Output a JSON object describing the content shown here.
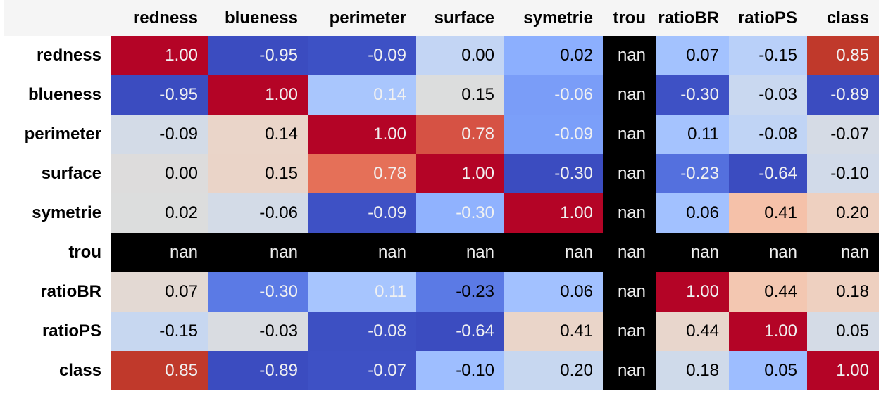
{
  "chart_data": {
    "type": "heatmap",
    "colormap": "coolwarm",
    "vmin": -1,
    "vmax": 1,
    "nan_color": "#000000",
    "columns": [
      "redness",
      "blueness",
      "perimeter",
      "surface",
      "symetrie",
      "trou",
      "ratioBR",
      "ratioPS",
      "class"
    ],
    "rows": [
      "redness",
      "blueness",
      "perimeter",
      "surface",
      "symetrie",
      "trou",
      "ratioBR",
      "ratioPS",
      "class"
    ],
    "values": [
      [
        "1.00",
        "-0.95",
        "-0.09",
        "0.00",
        "0.02",
        "nan",
        "0.07",
        "-0.15",
        "0.85"
      ],
      [
        "-0.95",
        "1.00",
        "0.14",
        "0.15",
        "-0.06",
        "nan",
        "-0.30",
        "-0.03",
        "-0.89"
      ],
      [
        "-0.09",
        "0.14",
        "1.00",
        "0.78",
        "-0.09",
        "nan",
        "0.11",
        "-0.08",
        "-0.07"
      ],
      [
        "0.00",
        "0.15",
        "0.78",
        "1.00",
        "-0.30",
        "nan",
        "-0.23",
        "-0.64",
        "-0.10"
      ],
      [
        "0.02",
        "-0.06",
        "-0.09",
        "-0.30",
        "1.00",
        "nan",
        "0.06",
        "0.41",
        "0.20"
      ],
      [
        "nan",
        "nan",
        "nan",
        "nan",
        "nan",
        "nan",
        "nan",
        "nan",
        "nan"
      ],
      [
        "0.07",
        "-0.30",
        "0.11",
        "-0.23",
        "0.06",
        "nan",
        "1.00",
        "0.44",
        "0.18"
      ],
      [
        "-0.15",
        "-0.03",
        "-0.08",
        "-0.64",
        "0.41",
        "nan",
        "0.44",
        "1.00",
        "0.05"
      ],
      [
        "0.85",
        "-0.89",
        "-0.07",
        "-0.10",
        "0.20",
        "nan",
        "0.18",
        "0.05",
        "1.00"
      ]
    ],
    "cell_colors": [
      [
        "#b40426",
        "#3b4cc0",
        "#3d51c5",
        "#c3d5f4",
        "#8caffe",
        "#000000",
        "#a3c2fe",
        "#b9d0f9",
        "#c0392b"
      ],
      [
        "#3b4cc0",
        "#b40426",
        "#a9c6fd",
        "#dcdddd",
        "#7a9df8",
        "#000000",
        "#3e51c5",
        "#c9d8f0",
        "#3b4cc0"
      ],
      [
        "#d3dbe7",
        "#ead5c9",
        "#b40426",
        "#d65244",
        "#7b9ff9",
        "#000000",
        "#a5c3fe",
        "#c0d4f5",
        "#d5dbe5"
      ],
      [
        "#dddcdc",
        "#ead4c8",
        "#e57058",
        "#b40426",
        "#3b4cc0",
        "#000000",
        "#5470de",
        "#3b4cc0",
        "#d1dae9"
      ],
      [
        "#dcdddd",
        "#d3dbe7",
        "#3e51c5",
        "#90b2fe",
        "#b40426",
        "#000000",
        "#a2c1ff",
        "#f5c1a9",
        "#eed0c0"
      ],
      [
        "#000000",
        "#000000",
        "#000000",
        "#000000",
        "#000000",
        "#000000",
        "#000000",
        "#000000",
        "#000000"
      ],
      [
        "#e3d9d3",
        "#5b7ae5",
        "#a7c5fe",
        "#5b7ae5",
        "#a2c1ff",
        "#000000",
        "#b40426",
        "#f3c7b1",
        "#eed0c0"
      ],
      [
        "#c7d7f0",
        "#d9dce1",
        "#3d50c3",
        "#3b4cc0",
        "#ead5c9",
        "#000000",
        "#e8d6cc",
        "#b40426",
        "#d4dbe6"
      ],
      [
        "#c0392b",
        "#3b4cc0",
        "#3e51c5",
        "#9ebeff",
        "#c7d7f0",
        "#000000",
        "#cfdaea",
        "#9dbdff",
        "#b40426"
      ]
    ],
    "text_colors": [
      [
        "#f1f1f1",
        "#f1f1f1",
        "#f1f1f1",
        "#000000",
        "#000000",
        "#f1f1f1",
        "#000000",
        "#000000",
        "#f1f1f1"
      ],
      [
        "#f1f1f1",
        "#f1f1f1",
        "#f1f1f1",
        "#000000",
        "#f1f1f1",
        "#f1f1f1",
        "#f1f1f1",
        "#000000",
        "#f1f1f1"
      ],
      [
        "#000000",
        "#000000",
        "#f1f1f1",
        "#f1f1f1",
        "#f1f1f1",
        "#f1f1f1",
        "#000000",
        "#000000",
        "#000000"
      ],
      [
        "#000000",
        "#000000",
        "#f1f1f1",
        "#f1f1f1",
        "#f1f1f1",
        "#f1f1f1",
        "#f1f1f1",
        "#f1f1f1",
        "#000000"
      ],
      [
        "#000000",
        "#000000",
        "#f1f1f1",
        "#f1f1f1",
        "#f1f1f1",
        "#f1f1f1",
        "#000000",
        "#000000",
        "#000000"
      ],
      [
        "#f1f1f1",
        "#f1f1f1",
        "#f1f1f1",
        "#f1f1f1",
        "#f1f1f1",
        "#f1f1f1",
        "#f1f1f1",
        "#f1f1f1",
        "#f1f1f1"
      ],
      [
        "#000000",
        "#f1f1f1",
        "#f1f1f1",
        "#000000",
        "#000000",
        "#f1f1f1",
        "#f1f1f1",
        "#000000",
        "#000000"
      ],
      [
        "#000000",
        "#000000",
        "#f1f1f1",
        "#f1f1f1",
        "#000000",
        "#f1f1f1",
        "#000000",
        "#f1f1f1",
        "#000000"
      ],
      [
        "#f1f1f1",
        "#f1f1f1",
        "#f1f1f1",
        "#000000",
        "#000000",
        "#f1f1f1",
        "#000000",
        "#000000",
        "#f1f1f1"
      ]
    ]
  }
}
